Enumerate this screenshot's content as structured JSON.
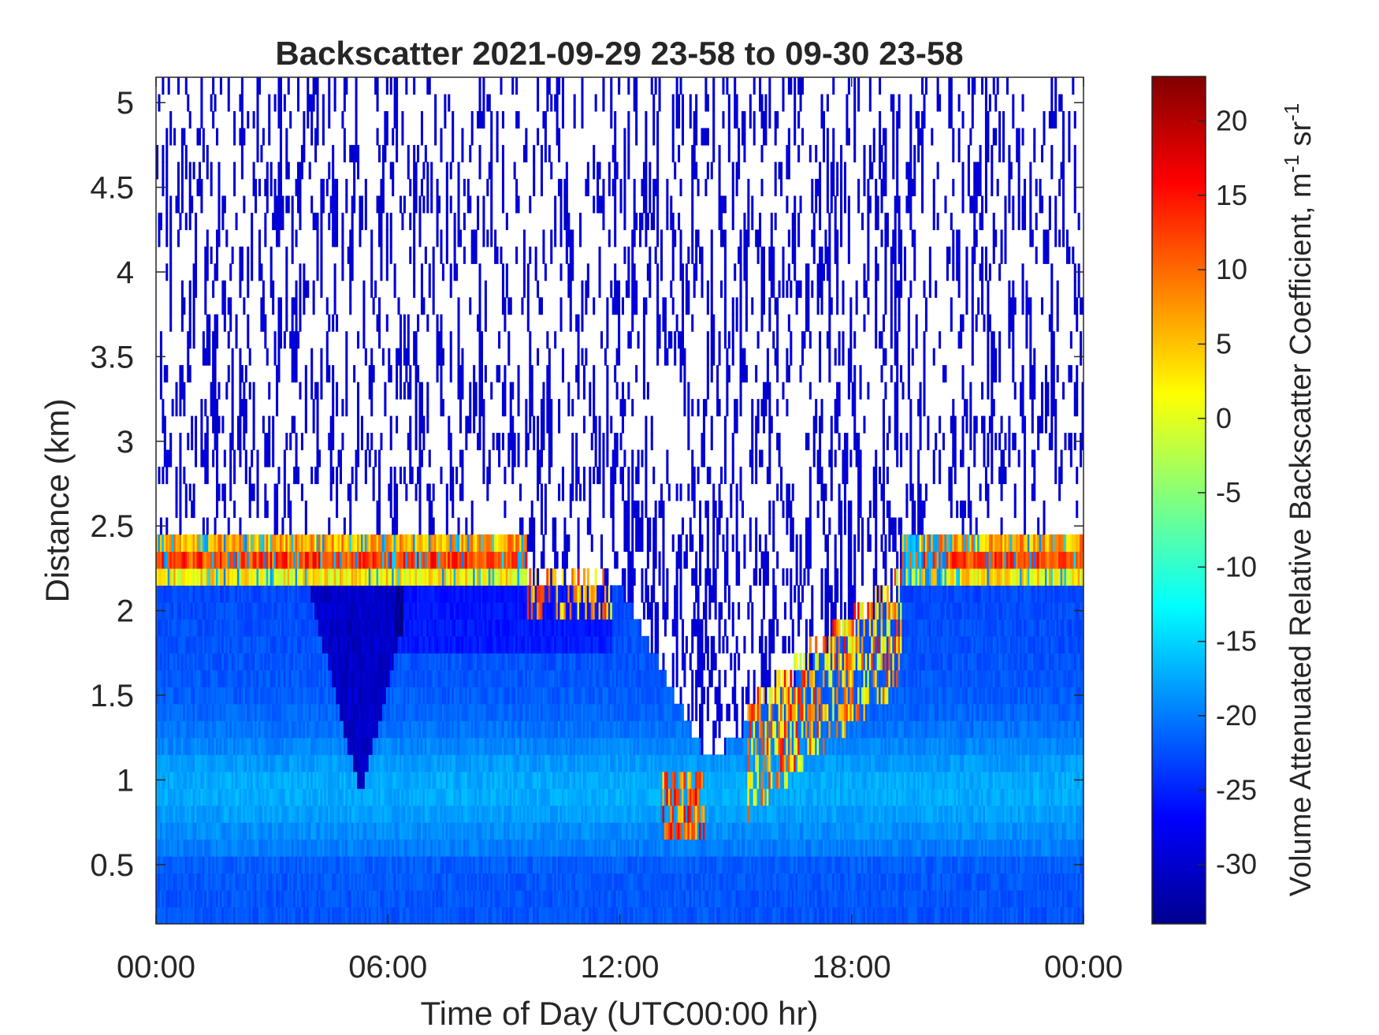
{
  "chart_data": {
    "type": "heatmap",
    "title": "Backscatter 2021-09-29 23-58 to 09-30 23-58",
    "xlabel": "Time of Day (UTC00:00 hr)",
    "ylabel": "Distance (km)",
    "xlim": [
      0,
      24
    ],
    "ylim": [
      0.15,
      5.15
    ],
    "x_ticks": [
      0,
      6,
      12,
      18,
      24
    ],
    "x_tick_labels": [
      "00:00",
      "06:00",
      "12:00",
      "18:00",
      "00:00"
    ],
    "y_ticks": [
      0.5,
      1,
      1.5,
      2,
      2.5,
      3,
      3.5,
      4,
      4.5,
      5
    ],
    "y_tick_labels": [
      "0.5",
      "1",
      "1.5",
      "2",
      "2.5",
      "3",
      "3.5",
      "4",
      "4.5",
      "5"
    ],
    "colormap": "jet",
    "colorbar": {
      "label_main": "Volume Attenuated Relative Backscatter Coefficient, m",
      "label_exp1": "-1",
      "label_mid": " sr",
      "label_exp2": "-1",
      "clim": [
        -34,
        23
      ],
      "ticks": [
        -30,
        -25,
        -20,
        -15,
        -10,
        -5,
        0,
        5,
        10,
        15,
        20
      ],
      "tick_labels": [
        "-30",
        "-25",
        "-20",
        "-15",
        "-10",
        "-5",
        "0",
        "5",
        "10",
        "15",
        "20"
      ]
    },
    "grid": false,
    "features": {
      "boundary_layer_cloud_top_km": 2.45,
      "cloud_layer_km": [
        2.15,
        2.45
      ],
      "noise_above_km": 2.5,
      "low_cloud_near_13h_km": [
        0.65,
        1.1
      ],
      "cloud_near_16h_km": [
        1.1,
        1.8
      ]
    }
  }
}
